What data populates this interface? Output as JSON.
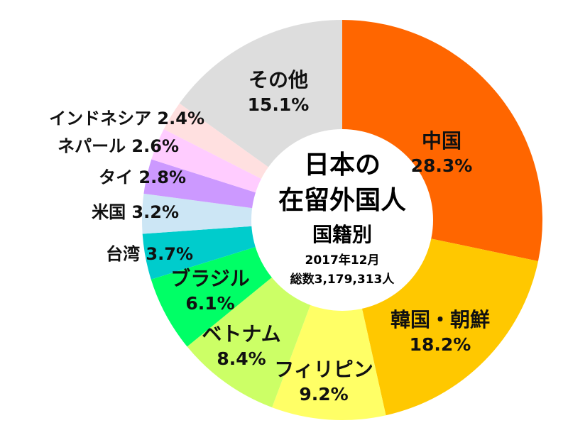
{
  "chart_data": {
    "type": "pie",
    "title": "日本の在留外国人国籍別",
    "title_lines": [
      "日本の",
      "在留外国人",
      "国籍別"
    ],
    "subtitle_lines": [
      "2017年12月",
      "総数3,179,313人"
    ],
    "slices": [
      {
        "name": "中国",
        "value": 28.3,
        "label": "28.3%",
        "color": "#FF6600"
      },
      {
        "name": "韓国・朝鮮",
        "value": 18.2,
        "label": "18.2%",
        "color": "#FFC800"
      },
      {
        "name": "フィリピン",
        "value": 9.2,
        "label": "9.2%",
        "color": "#FFFF66"
      },
      {
        "name": "ベトナム",
        "value": 8.4,
        "label": "8.4%",
        "color": "#CCFF66"
      },
      {
        "name": "ブラジル",
        "value": 6.1,
        "label": "6.1%",
        "color": "#00FF66"
      },
      {
        "name": "台湾",
        "value": 3.7,
        "label": "3.7%",
        "color": "#00CCCC"
      },
      {
        "name": "米国",
        "value": 3.2,
        "label": "3.2%",
        "color": "#CCE6F5"
      },
      {
        "name": "タイ",
        "value": 2.8,
        "label": "2.8%",
        "color": "#CC99FF"
      },
      {
        "name": "ネパール",
        "value": 2.6,
        "label": "2.6%",
        "color": "#FFCCFF"
      },
      {
        "name": "インドネシア",
        "value": 2.4,
        "label": "2.4%",
        "color": "#FFE0E0"
      },
      {
        "name": "その他",
        "value": 15.1,
        "label": "15.1%",
        "color": "#DDDDDD"
      }
    ]
  }
}
